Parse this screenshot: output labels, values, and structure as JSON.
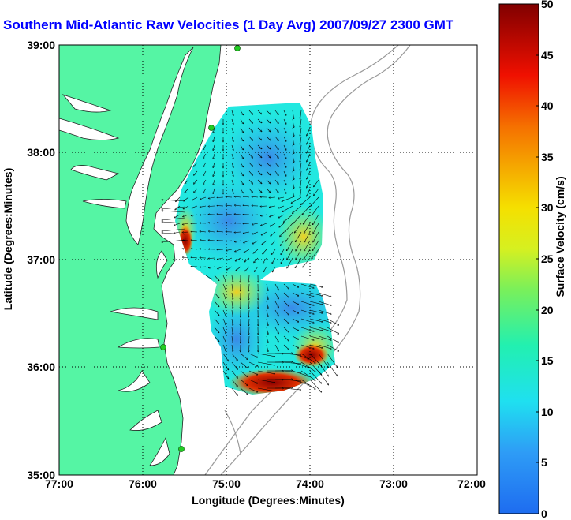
{
  "title": "Southern Mid-Atlantic Raw Velocities (1 Day Avg) 2007/09/27 2300 GMT",
  "xlabel": "Longitude (Degrees:Minutes)",
  "ylabel": "Latitude (Degrees:Minutes)",
  "colorbar": {
    "label": "Surface Velocity (cm/s)",
    "ticks": [
      "0",
      "5",
      "10",
      "15",
      "20",
      "25",
      "30",
      "35",
      "40",
      "45",
      "50"
    ]
  },
  "axes": {
    "x_ticks": [
      "77:00",
      "76:00",
      "75:00",
      "74:00",
      "73:00",
      "72:00"
    ],
    "y_ticks": [
      "39:00",
      "38:00",
      "37:00",
      "36:00",
      "35:00"
    ]
  },
  "colors": {
    "land": "#55f5a4",
    "velocity_low": "#1e6cf0",
    "velocity_high": "#8b0000",
    "title": "#0000ff"
  },
  "chart_data": {
    "type": "heatmap",
    "title": "Southern Mid-Atlantic Raw Velocities (1 Day Avg) 2007/09/27 2300 GMT",
    "xlabel": "Longitude (Degrees:Minutes)",
    "ylabel": "Latitude (Degrees:Minutes)",
    "xlim": [
      -77,
      -72
    ],
    "ylim": [
      35,
      39
    ],
    "colorbar_range": [
      0,
      50
    ],
    "colorbar_units": "cm/s",
    "grid": true
  }
}
